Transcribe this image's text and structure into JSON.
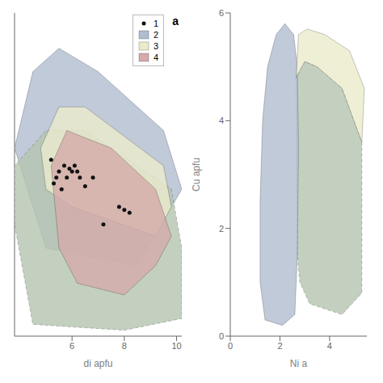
{
  "chart_data": [
    {
      "type": "scatter",
      "xlabel": "di apfu",
      "annotations": [
        "a"
      ],
      "xlim": [
        3.8,
        10.2
      ],
      "ylim": [
        0.3,
        5.8
      ],
      "xticks": [
        6,
        8,
        10
      ],
      "tick_labels": "x",
      "legend": "upper right",
      "series": [
        {
          "name": "1",
          "type": "scatter",
          "color": "#111111",
          "points": [
            [
              5.2,
              3.3
            ],
            [
              5.3,
              2.9
            ],
            [
              5.5,
              3.1
            ],
            [
              5.7,
              3.2
            ],
            [
              5.8,
              3.0
            ],
            [
              6.0,
              3.1
            ],
            [
              6.1,
              3.2
            ],
            [
              6.2,
              3.1
            ],
            [
              6.3,
              3.0
            ],
            [
              5.6,
              2.8
            ],
            [
              5.4,
              3.0
            ],
            [
              5.9,
              3.15
            ],
            [
              6.8,
              3.0
            ],
            [
              6.5,
              2.85
            ],
            [
              7.8,
              2.5
            ],
            [
              8.0,
              2.45
            ],
            [
              8.2,
              2.4
            ],
            [
              7.2,
              2.2
            ]
          ]
        },
        {
          "name": "2",
          "type": "polygon",
          "color": "#b0bdd0",
          "points": [
            [
              3.8,
              3.5
            ],
            [
              4.5,
              4.8
            ],
            [
              5.5,
              5.2
            ],
            [
              7.0,
              4.8
            ],
            [
              9.5,
              3.8
            ],
            [
              10.2,
              2.8
            ],
            [
              8.5,
              1.5
            ],
            [
              5.0,
              1.8
            ]
          ]
        },
        {
          "type": "polygon",
          "color": "#b4c4b0",
          "line_style": "dashed",
          "points": [
            [
              3.8,
              2.2
            ],
            [
              3.8,
              3.2
            ],
            [
              5.0,
              3.8
            ],
            [
              6.5,
              3.8
            ],
            [
              9.8,
              2.8
            ],
            [
              10.2,
              1.8
            ],
            [
              10.2,
              0.6
            ],
            [
              8.0,
              0.4
            ],
            [
              4.5,
              0.5
            ]
          ]
        },
        {
          "name": "3",
          "type": "polygon",
          "color": "#ebebcc",
          "points": [
            [
              4.8,
              3.5
            ],
            [
              5.5,
              4.2
            ],
            [
              6.5,
              4.2
            ],
            [
              9.5,
              3.2
            ],
            [
              9.8,
              2.5
            ],
            [
              9.2,
              2.0
            ],
            [
              6.0,
              2.5
            ],
            [
              5.0,
              2.8
            ]
          ]
        },
        {
          "name": "4",
          "type": "polygon",
          "color": "#d4aaaa",
          "points": [
            [
              5.2,
              3.2
            ],
            [
              5.8,
              3.8
            ],
            [
              7.5,
              3.5
            ],
            [
              9.2,
              2.8
            ],
            [
              9.8,
              2.0
            ],
            [
              9.2,
              1.5
            ],
            [
              8.0,
              1.0
            ],
            [
              6.2,
              1.2
            ],
            [
              5.5,
              1.8
            ]
          ]
        }
      ]
    },
    {
      "type": "polygon",
      "xlabel": "Ni a",
      "ylabel": "Cu apfu",
      "xlim": [
        0,
        5.5
      ],
      "ylim": [
        0,
        6
      ],
      "xticks": [
        0,
        2,
        4
      ],
      "yticks": [
        0,
        2,
        4,
        6
      ],
      "series": [
        {
          "type": "polygon",
          "color": "#b4c4b0",
          "line_style": "dashed",
          "points": [
            [
              2.7,
              1.5
            ],
            [
              2.65,
              4.8
            ],
            [
              3.0,
              5.1
            ],
            [
              3.5,
              5.0
            ],
            [
              4.5,
              4.6
            ],
            [
              5.3,
              3.6
            ],
            [
              5.3,
              2.8
            ],
            [
              5.3,
              0.8
            ],
            [
              4.5,
              0.4
            ],
            [
              3.2,
              0.6
            ],
            [
              2.8,
              1.0
            ]
          ]
        },
        {
          "type": "polygon",
          "color": "#b0bdd0",
          "points": [
            [
              1.4,
              0.3
            ],
            [
              1.2,
              1.0
            ],
            [
              1.2,
              2.5
            ],
            [
              1.3,
              4.0
            ],
            [
              1.5,
              5.0
            ],
            [
              1.85,
              5.6
            ],
            [
              2.2,
              5.8
            ],
            [
              2.55,
              5.6
            ],
            [
              2.7,
              5.0
            ],
            [
              2.75,
              3.5
            ],
            [
              2.7,
              1.5
            ],
            [
              2.6,
              0.4
            ],
            [
              2.1,
              0.2
            ]
          ]
        },
        {
          "type": "polygon",
          "color": "#ebebcc",
          "points": [
            [
              2.65,
              4.8
            ],
            [
              2.75,
              5.6
            ],
            [
              3.1,
              5.7
            ],
            [
              3.8,
              5.6
            ],
            [
              4.8,
              5.3
            ],
            [
              5.4,
              4.6
            ],
            [
              5.3,
              3.6
            ],
            [
              4.5,
              4.6
            ],
            [
              3.5,
              5.0
            ],
            [
              3.0,
              5.1
            ]
          ]
        }
      ]
    }
  ]
}
